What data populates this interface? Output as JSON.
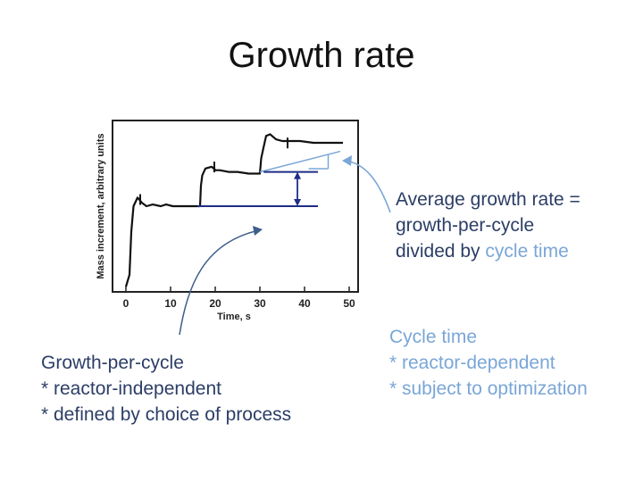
{
  "slide": {
    "title": "Growth rate"
  },
  "chart_data": {
    "type": "line",
    "xlabel": "Time, s",
    "ylabel": "Mass increment, arbitrary units",
    "xlim": [
      -3,
      52
    ],
    "ylim": [
      0,
      1
    ],
    "x_ticks": [
      0,
      10,
      20,
      30,
      40,
      50
    ],
    "series": [
      {
        "name": "mass increment",
        "points": [
          [
            0,
            0.03
          ],
          [
            0.8,
            0.1
          ],
          [
            1.2,
            0.35
          ],
          [
            1.7,
            0.5
          ],
          [
            2.6,
            0.55
          ],
          [
            3.6,
            0.52
          ],
          [
            4.6,
            0.5
          ],
          [
            6,
            0.51
          ],
          [
            7.8,
            0.5
          ],
          [
            9,
            0.51
          ],
          [
            10.5,
            0.5
          ],
          [
            12,
            0.5
          ],
          [
            14,
            0.5
          ],
          [
            16,
            0.5
          ],
          [
            16.6,
            0.5
          ],
          [
            16.8,
            0.62
          ],
          [
            17.1,
            0.68
          ],
          [
            17.8,
            0.72
          ],
          [
            19.2,
            0.73
          ],
          [
            20.1,
            0.71
          ],
          [
            21,
            0.71
          ],
          [
            23,
            0.7
          ],
          [
            25,
            0.7
          ],
          [
            27.5,
            0.69
          ],
          [
            29.4,
            0.69
          ],
          [
            30,
            0.69
          ],
          [
            30.3,
            0.78
          ],
          [
            30.8,
            0.84
          ],
          [
            31.4,
            0.91
          ],
          [
            32.3,
            0.92
          ],
          [
            33.6,
            0.89
          ],
          [
            35,
            0.88
          ],
          [
            37,
            0.88
          ],
          [
            39,
            0.88
          ],
          [
            42,
            0.87
          ],
          [
            45,
            0.87
          ],
          [
            48.6,
            0.87
          ]
        ]
      }
    ],
    "step_markers": [
      [
        3.2,
        0.57
      ],
      [
        19.8,
        0.76
      ],
      [
        36.2,
        0.9
      ]
    ],
    "annotations": {
      "cycle_triangle": [
        [
          30,
          0.7
        ],
        [
          48,
          0.82
        ]
      ],
      "growth_per_cycle": {
        "lower": 0.5,
        "upper": 0.7,
        "x_from": 16,
        "x_to": 43
      }
    },
    "colors": {
      "trace": "#111111",
      "annotation_navy": "#1f2d86",
      "annotation_light": "#7aa6d8",
      "callout_arrow": "#3e5e8c"
    }
  },
  "callouts": {
    "growth_rate": {
      "line1": "Average growth rate  =",
      "line2": "growth-per-cycle",
      "line3_prefix": "divided by ",
      "line3_highlight": "cycle time"
    },
    "cycle_time": {
      "title": "Cycle time",
      "item1": "* reactor-dependent",
      "item2": "* subject to optimization"
    },
    "growth_per_cycle": {
      "title": "Growth-per-cycle",
      "item1": "* reactor-independent",
      "item2": "* defined by choice of process"
    }
  }
}
